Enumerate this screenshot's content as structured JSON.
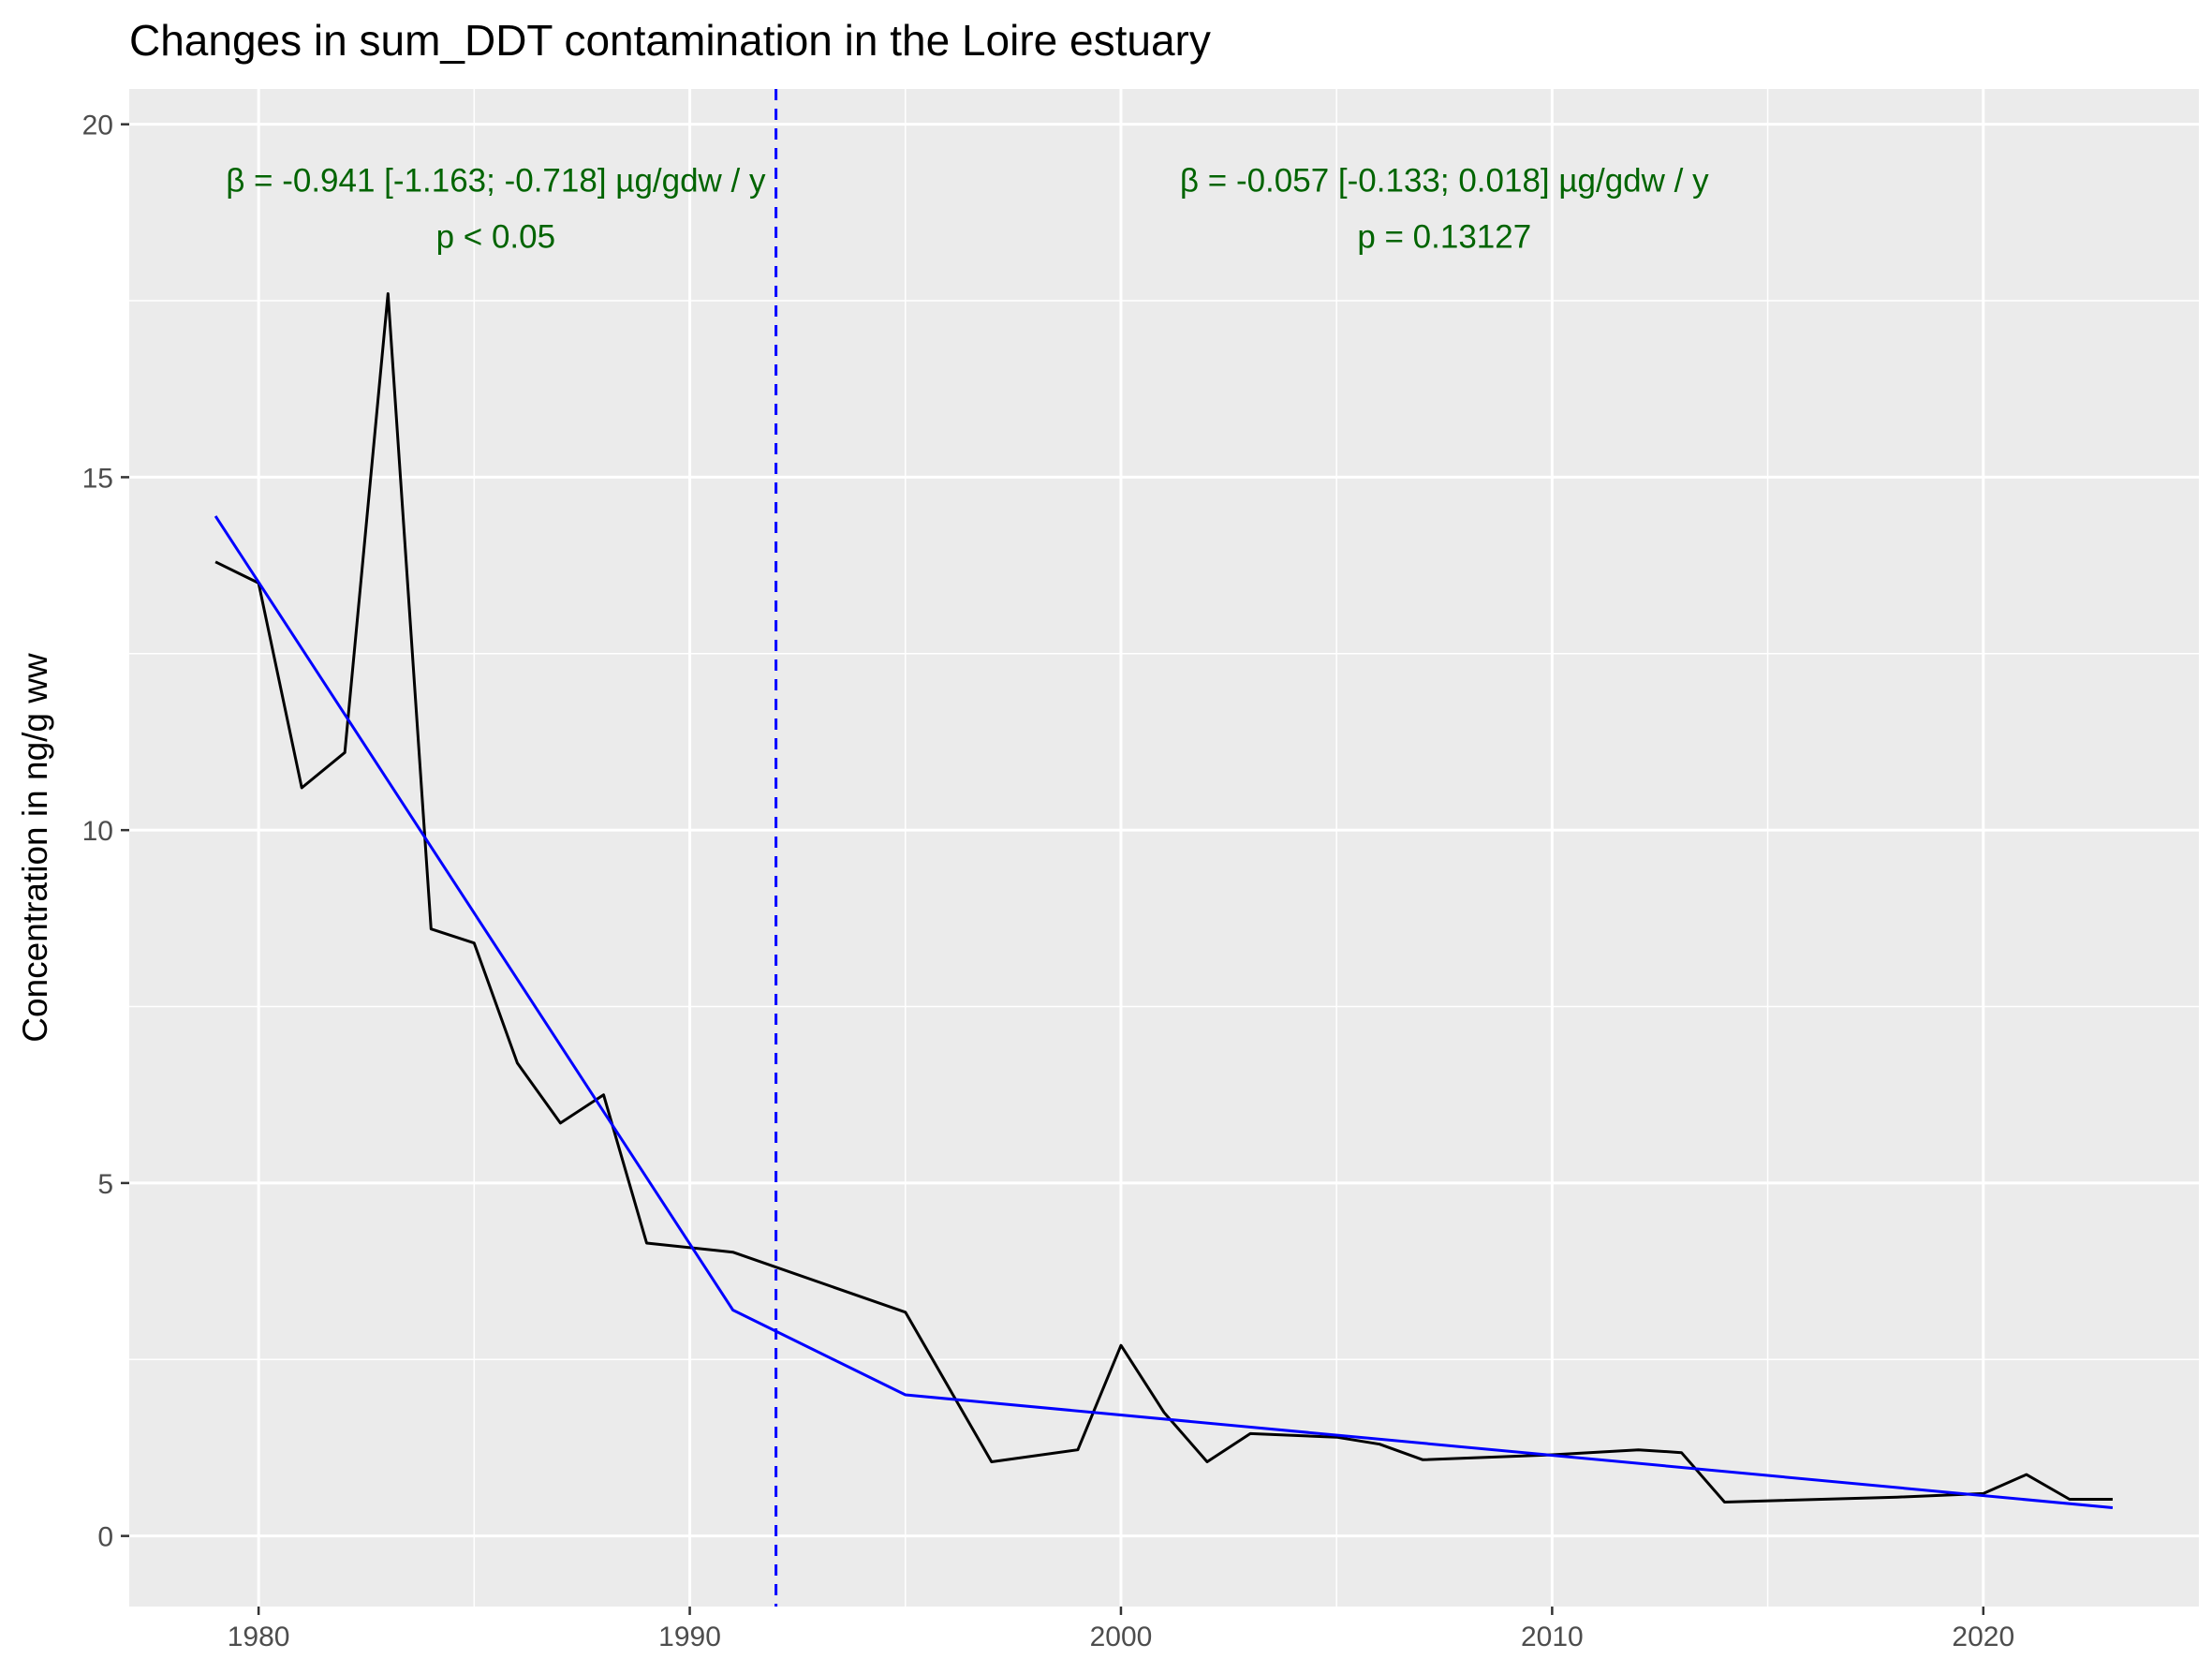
{
  "chart_data": {
    "type": "line",
    "title": "Changes in sum_DDT contamination in the Loire estuary",
    "xlabel": "",
    "ylabel": "Concentration in ng/g ww",
    "xlim": [
      1977,
      2025
    ],
    "ylim": [
      -1,
      20.5
    ],
    "x_ticks": [
      1980,
      1990,
      2000,
      2010,
      2020
    ],
    "y_ticks": [
      0,
      5,
      10,
      15,
      20
    ],
    "grid": true,
    "legend": "none",
    "colors": {
      "panel_bg": "#ebebeb",
      "grid": "#ffffff",
      "observed": "#000000",
      "trend": "#0000ff",
      "breakpoint": "#0000ff",
      "annotation": "#006400",
      "tick_text": "#4d4d4d"
    },
    "series": [
      {
        "role": "observed",
        "x": [
          1979,
          1980,
          1981,
          1982,
          1983,
          1984,
          1985,
          1986,
          1987,
          1988,
          1989,
          1991,
          1995,
          1997,
          1999,
          2000,
          2001,
          2002,
          2003,
          2005,
          2006,
          2007,
          2010,
          2012,
          2013,
          2014,
          2018,
          2020,
          2021,
          2022,
          2023
        ],
        "y": [
          13.8,
          13.5,
          10.6,
          11.1,
          17.6,
          8.6,
          8.4,
          6.7,
          5.85,
          6.25,
          4.15,
          4.02,
          3.17,
          1.05,
          1.22,
          2.7,
          1.75,
          1.05,
          1.45,
          1.4,
          1.3,
          1.08,
          1.15,
          1.22,
          1.18,
          0.48,
          0.55,
          0.6,
          0.87,
          0.52,
          0.52
        ]
      },
      {
        "role": "trend",
        "x": [
          1979,
          1991,
          1995,
          2023
        ],
        "y": [
          14.45,
          3.2,
          2.0,
          0.4
        ]
      }
    ],
    "breakpoint_x": 1992,
    "annotations": [
      {
        "line1": "β = -0.941 [-1.163; -0.718] µg/gdw / y",
        "line2": "p < 0.05",
        "x": 1985.5,
        "y1": 19.05,
        "y2": 18.25
      },
      {
        "line1": "β = -0.057 [-0.133; 0.018] µg/gdw / y",
        "line2": "p = 0.13127",
        "x": 2007.5,
        "y1": 19.05,
        "y2": 18.25
      }
    ]
  }
}
